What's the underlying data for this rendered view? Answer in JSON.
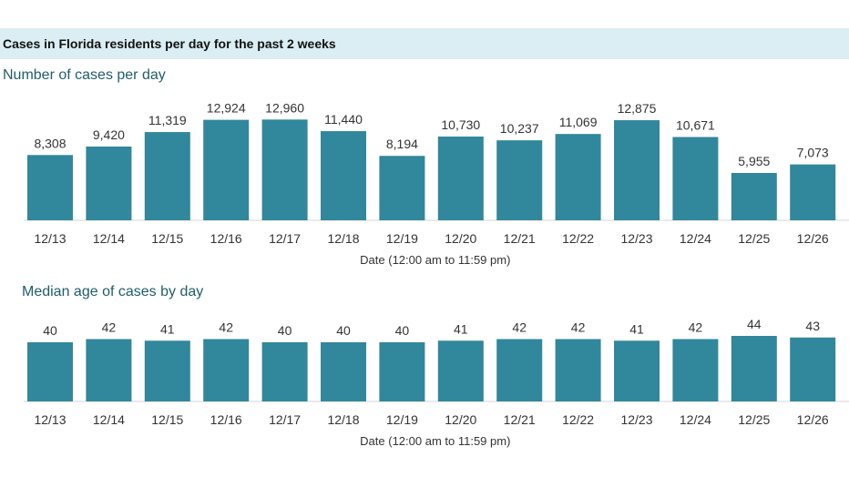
{
  "banner": {
    "title": "Cases in Florida residents per day for the past 2 weeks"
  },
  "colors": {
    "bar": "#31879b",
    "banner_bg": "#daeef3",
    "chart_title": "#1f5d6b"
  },
  "chart_data": [
    {
      "type": "bar",
      "title": "Number of cases per day",
      "xlabel": "Date (12:00 am to 11:59 pm)",
      "ylabel": "",
      "categories": [
        "12/13",
        "12/14",
        "12/15",
        "12/16",
        "12/17",
        "12/18",
        "12/19",
        "12/20",
        "12/21",
        "12/22",
        "12/23",
        "12/24",
        "12/25",
        "12/26"
      ],
      "values": [
        8308,
        9420,
        11319,
        12924,
        12960,
        11440,
        8194,
        10730,
        10237,
        11069,
        12875,
        10671,
        5955,
        7073
      ],
      "value_labels": [
        "8,308",
        "9,420",
        "11,319",
        "12,924",
        "12,960",
        "11,440",
        "8,194",
        "10,730",
        "10,237",
        "11,069",
        "12,875",
        "10,671",
        "5,955",
        "7,073"
      ],
      "ylim": [
        0,
        13000
      ],
      "grid": false
    },
    {
      "type": "bar",
      "title": "Median age of cases by day",
      "xlabel": "Date (12:00 am to 11:59 pm)",
      "ylabel": "",
      "categories": [
        "12/13",
        "12/14",
        "12/15",
        "12/16",
        "12/17",
        "12/18",
        "12/19",
        "12/20",
        "12/21",
        "12/22",
        "12/23",
        "12/24",
        "12/25",
        "12/26"
      ],
      "values": [
        40,
        42,
        41,
        42,
        40,
        40,
        40,
        41,
        42,
        42,
        41,
        42,
        44,
        43
      ],
      "value_labels": [
        "40",
        "42",
        "41",
        "42",
        "40",
        "40",
        "40",
        "41",
        "42",
        "42",
        "41",
        "42",
        "44",
        "43"
      ],
      "ylim": [
        0,
        44
      ],
      "grid": false
    }
  ]
}
